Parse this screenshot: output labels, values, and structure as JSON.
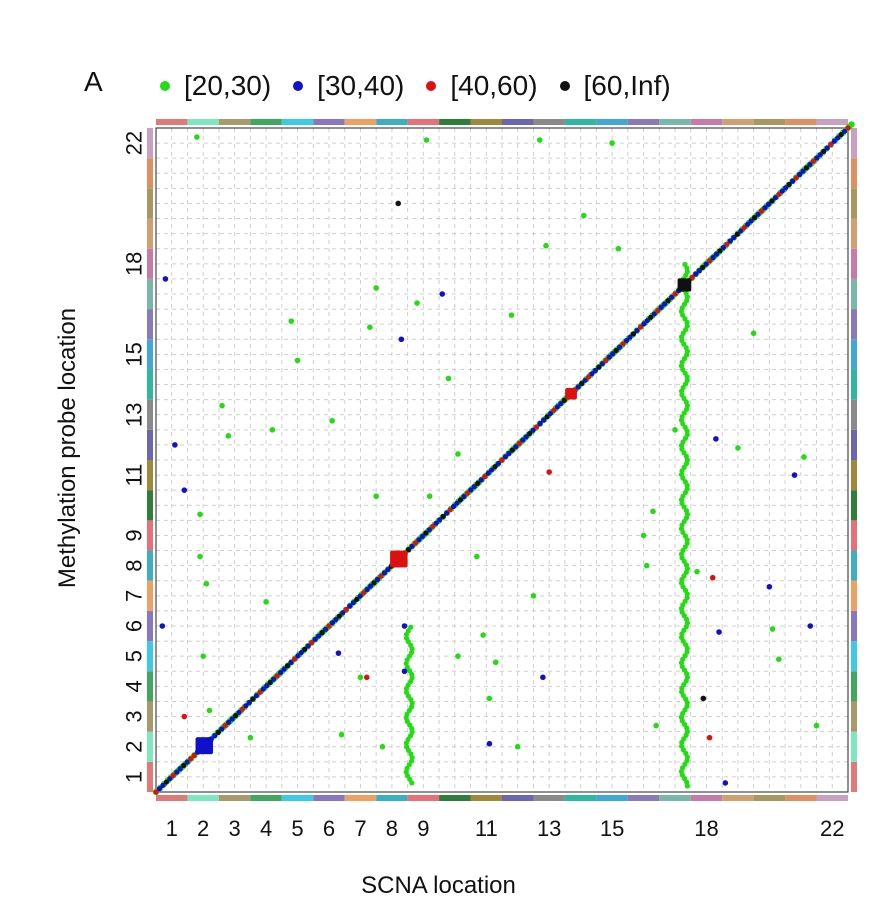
{
  "panel_label": "A",
  "chart_data": {
    "type": "scatter",
    "title": "",
    "xlabel": "SCNA location",
    "ylabel": "Methylation probe location",
    "xlim": [
      0,
      22
    ],
    "ylim": [
      0,
      22
    ],
    "grid": true,
    "legend_position": "top",
    "chromosomes": [
      "1",
      "2",
      "3",
      "4",
      "5",
      "6",
      "7",
      "8",
      "9",
      "10",
      "11",
      "12",
      "13",
      "14",
      "15",
      "16",
      "17",
      "18",
      "19",
      "20",
      "21",
      "22"
    ],
    "x_tick_labels": [
      "1",
      "2",
      "3",
      "4",
      "5",
      "6",
      "7",
      "8",
      "9",
      "11",
      "13",
      "15",
      "18",
      "22"
    ],
    "y_tick_labels": [
      "1",
      "2",
      "3",
      "4",
      "5",
      "6",
      "7",
      "8",
      "9",
      "11",
      "13",
      "15",
      "18",
      "22"
    ],
    "chromosome_colors": [
      "#e07a7a",
      "#7de8c0",
      "#a89a6a",
      "#3fa85e",
      "#3dc9e8",
      "#8a77c2",
      "#f0a060",
      "#3ab0c0",
      "#e8707a",
      "#2e7d3a",
      "#a08a3a",
      "#6a66b0",
      "#8a8a8a",
      "#2fb8a0",
      "#40a8d8",
      "#8a7ab8",
      "#78b8a8",
      "#c87aa8",
      "#d0a070",
      "#a89860",
      "#e09060",
      "#c8a0c0"
    ],
    "legend": [
      {
        "label": "[20,30)",
        "color": "#22dd11"
      },
      {
        "label": "[30,40)",
        "color": "#1111cc"
      },
      {
        "label": "[40,60)",
        "color": "#dd1111"
      },
      {
        "label": "[60,Inf)",
        "color": "#111111"
      }
    ],
    "diagonal": {
      "from": [
        0,
        0
      ],
      "to": [
        22,
        22
      ]
    },
    "blocks": [
      {
        "x": 1.55,
        "y": 1.55,
        "size": 0.45,
        "color": "#1111cc"
      },
      {
        "x": 7.72,
        "y": 7.72,
        "size": 0.42,
        "color": "#dd1111"
      },
      {
        "x": 16.8,
        "y": 16.8,
        "size": 0.3,
        "color": "#111111"
      },
      {
        "x": 13.2,
        "y": 13.2,
        "size": 0.25,
        "color": "#dd1111"
      }
    ],
    "columns": [
      {
        "x": 16.8,
        "y0": 0.2,
        "y1": 17.5,
        "color": "#22dd11"
      },
      {
        "x": 8.05,
        "y0": 0.3,
        "y1": 5.5,
        "color": "#22dd11"
      }
    ],
    "off_points": [
      {
        "x": 0.3,
        "y": 17.0,
        "c": "#1111cc"
      },
      {
        "x": 0.6,
        "y": 11.5,
        "c": "#1111cc"
      },
      {
        "x": 0.9,
        "y": 10.0,
        "c": "#1111cc"
      },
      {
        "x": 0.2,
        "y": 5.5,
        "c": "#1111cc"
      },
      {
        "x": 0.9,
        "y": 2.5,
        "c": "#dd1111"
      },
      {
        "x": 1.3,
        "y": 21.7,
        "c": "#22dd11"
      },
      {
        "x": 1.4,
        "y": 9.2,
        "c": "#22dd11"
      },
      {
        "x": 1.4,
        "y": 7.8,
        "c": "#22dd11"
      },
      {
        "x": 1.6,
        "y": 6.9,
        "c": "#22dd11"
      },
      {
        "x": 1.5,
        "y": 4.5,
        "c": "#22dd11"
      },
      {
        "x": 1.7,
        "y": 2.7,
        "c": "#22dd11"
      },
      {
        "x": 2.1,
        "y": 12.8,
        "c": "#22dd11"
      },
      {
        "x": 2.3,
        "y": 11.8,
        "c": "#22dd11"
      },
      {
        "x": 3.0,
        "y": 1.8,
        "c": "#22dd11"
      },
      {
        "x": 3.7,
        "y": 12.0,
        "c": "#22dd11"
      },
      {
        "x": 3.5,
        "y": 6.3,
        "c": "#22dd11"
      },
      {
        "x": 4.3,
        "y": 15.6,
        "c": "#22dd11"
      },
      {
        "x": 4.5,
        "y": 14.3,
        "c": "#22dd11"
      },
      {
        "x": 5.6,
        "y": 12.3,
        "c": "#22dd11"
      },
      {
        "x": 5.9,
        "y": 1.9,
        "c": "#22dd11"
      },
      {
        "x": 5.8,
        "y": 4.6,
        "c": "#1111cc"
      },
      {
        "x": 6.5,
        "y": 3.8,
        "c": "#22dd11"
      },
      {
        "x": 6.7,
        "y": 3.8,
        "c": "#dd1111"
      },
      {
        "x": 6.8,
        "y": 15.4,
        "c": "#22dd11"
      },
      {
        "x": 7.0,
        "y": 16.7,
        "c": "#22dd11"
      },
      {
        "x": 7.0,
        "y": 9.8,
        "c": "#22dd11"
      },
      {
        "x": 7.2,
        "y": 1.5,
        "c": "#22dd11"
      },
      {
        "x": 7.7,
        "y": 19.5,
        "c": "#111111"
      },
      {
        "x": 7.8,
        "y": 15.0,
        "c": "#1111cc"
      },
      {
        "x": 7.9,
        "y": 4.0,
        "c": "#1111cc"
      },
      {
        "x": 7.9,
        "y": 5.5,
        "c": "#1111cc"
      },
      {
        "x": 8.3,
        "y": 16.2,
        "c": "#22dd11"
      },
      {
        "x": 8.6,
        "y": 21.6,
        "c": "#22dd11"
      },
      {
        "x": 8.7,
        "y": 9.8,
        "c": "#22dd11"
      },
      {
        "x": 9.1,
        "y": 16.5,
        "c": "#1111cc"
      },
      {
        "x": 9.3,
        "y": 13.7,
        "c": "#22dd11"
      },
      {
        "x": 9.6,
        "y": 11.2,
        "c": "#22dd11"
      },
      {
        "x": 9.6,
        "y": 4.5,
        "c": "#22dd11"
      },
      {
        "x": 10.2,
        "y": 7.8,
        "c": "#22dd11"
      },
      {
        "x": 10.4,
        "y": 5.2,
        "c": "#22dd11"
      },
      {
        "x": 10.6,
        "y": 3.1,
        "c": "#22dd11"
      },
      {
        "x": 10.6,
        "y": 1.6,
        "c": "#1111cc"
      },
      {
        "x": 10.8,
        "y": 4.3,
        "c": "#22dd11"
      },
      {
        "x": 11.3,
        "y": 15.8,
        "c": "#22dd11"
      },
      {
        "x": 11.5,
        "y": 1.5,
        "c": "#22dd11"
      },
      {
        "x": 12.2,
        "y": 21.6,
        "c": "#22dd11"
      },
      {
        "x": 12.4,
        "y": 18.1,
        "c": "#22dd11"
      },
      {
        "x": 12.0,
        "y": 6.5,
        "c": "#22dd11"
      },
      {
        "x": 12.3,
        "y": 3.8,
        "c": "#1111cc"
      },
      {
        "x": 12.5,
        "y": 10.6,
        "c": "#dd1111"
      },
      {
        "x": 13.6,
        "y": 19.1,
        "c": "#22dd11"
      },
      {
        "x": 14.5,
        "y": 21.5,
        "c": "#22dd11"
      },
      {
        "x": 14.7,
        "y": 18.0,
        "c": "#22dd11"
      },
      {
        "x": 15.8,
        "y": 9.3,
        "c": "#22dd11"
      },
      {
        "x": 15.5,
        "y": 8.5,
        "c": "#22dd11"
      },
      {
        "x": 15.6,
        "y": 7.5,
        "c": "#22dd11"
      },
      {
        "x": 15.9,
        "y": 2.2,
        "c": "#22dd11"
      },
      {
        "x": 16.5,
        "y": 12.0,
        "c": "#22dd11"
      },
      {
        "x": 17.2,
        "y": 7.3,
        "c": "#22dd11"
      },
      {
        "x": 17.4,
        "y": 3.1,
        "c": "#111111"
      },
      {
        "x": 17.7,
        "y": 7.1,
        "c": "#dd1111"
      },
      {
        "x": 17.6,
        "y": 1.8,
        "c": "#dd1111"
      },
      {
        "x": 17.8,
        "y": 11.7,
        "c": "#1111cc"
      },
      {
        "x": 17.9,
        "y": 5.3,
        "c": "#1111cc"
      },
      {
        "x": 18.1,
        "y": 0.3,
        "c": "#1111cc"
      },
      {
        "x": 18.5,
        "y": 11.4,
        "c": "#22dd11"
      },
      {
        "x": 19.0,
        "y": 15.2,
        "c": "#22dd11"
      },
      {
        "x": 19.5,
        "y": 6.8,
        "c": "#1111cc"
      },
      {
        "x": 19.6,
        "y": 5.4,
        "c": "#22dd11"
      },
      {
        "x": 19.8,
        "y": 4.4,
        "c": "#22dd11"
      },
      {
        "x": 20.3,
        "y": 10.5,
        "c": "#1111cc"
      },
      {
        "x": 20.6,
        "y": 11.1,
        "c": "#22dd11"
      },
      {
        "x": 20.8,
        "y": 5.5,
        "c": "#1111cc"
      },
      {
        "x": 21.0,
        "y": 2.2,
        "c": "#22dd11"
      }
    ]
  }
}
